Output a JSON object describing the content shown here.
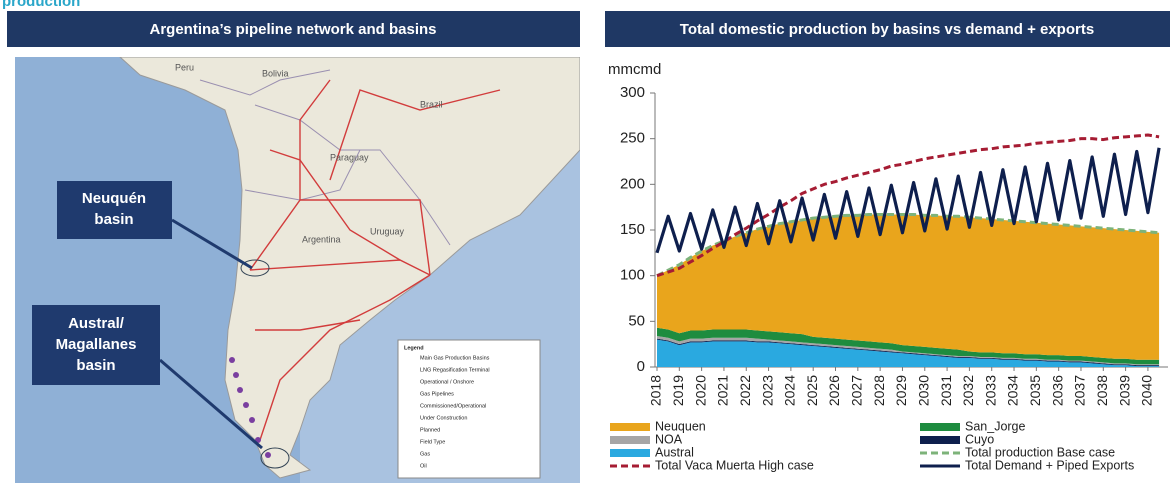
{
  "page": {
    "heading": "production"
  },
  "map_panel": {
    "title": "Argentina’s pipeline network and basins",
    "callouts": [
      [
        "Neuquén",
        "basin"
      ],
      [
        "Austral/",
        "Magallanes",
        "basin"
      ]
    ],
    "countries": [
      "Peru",
      "Bolivia",
      "Brazil",
      "Paraguay",
      "Uruguay",
      "Argentina"
    ],
    "legend": {
      "title": "Legend",
      "items": [
        "Main Gas Production Basins",
        "LNG Regasification Terminal",
        "Operational / Onshore",
        "Gas Pipelines",
        "Commissioned/Operational",
        "Under Construction",
        "Planned",
        "Field Type",
        "Gas",
        "Oil"
      ]
    }
  },
  "chart_data": {
    "type": "stacked_area_line",
    "title": "Total domestic production by basins vs demand + exports",
    "y_label": "mmcmd",
    "xlim": [
      2018,
      2040.9
    ],
    "ylim": [
      0,
      300
    ],
    "yticks": [
      0,
      50,
      100,
      150,
      200,
      250,
      300
    ],
    "xticks": [
      2018,
      2019,
      2020,
      2021,
      2022,
      2023,
      2024,
      2025,
      2026,
      2027,
      2028,
      2029,
      2030,
      2031,
      2032,
      2033,
      2034,
      2035,
      2036,
      2037,
      2038,
      2039,
      2040
    ],
    "x": [
      2018,
      2018.5,
      2019,
      2019.5,
      2020,
      2020.5,
      2021,
      2021.5,
      2022,
      2022.5,
      2023,
      2023.5,
      2024,
      2024.5,
      2025,
      2025.5,
      2026,
      2026.5,
      2027,
      2027.5,
      2028,
      2028.5,
      2029,
      2029.5,
      2030,
      2030.5,
      2031,
      2031.5,
      2032,
      2032.5,
      2033,
      2033.5,
      2034,
      2034.5,
      2035,
      2035.5,
      2036,
      2036.5,
      2037,
      2037.5,
      2038,
      2038.5,
      2039,
      2039.5,
      2040,
      2040.5
    ],
    "series": [
      {
        "name": "Neuquen",
        "kind": "area",
        "color": "#e9a51c",
        "values": [
          57,
          65,
          75,
          80,
          87,
          92,
          97,
          102,
          106,
          111,
          115,
          119,
          122,
          125,
          130,
          132,
          134,
          136,
          137,
          139,
          140,
          141,
          143,
          144,
          144,
          145,
          145,
          146,
          147,
          147,
          146,
          146,
          145,
          145,
          144,
          144,
          143,
          143,
          142,
          142,
          142,
          142,
          141,
          141,
          140,
          139
        ]
      },
      {
        "name": "San_Jorge",
        "kind": "area",
        "color": "#1e8c3f",
        "values": [
          9,
          9,
          9,
          9,
          9,
          9,
          9,
          9,
          9,
          9,
          9,
          9,
          9,
          9,
          7,
          7,
          7,
          7,
          7,
          7,
          7,
          7,
          7,
          7,
          7,
          7,
          7,
          7,
          5,
          5,
          5,
          5,
          5,
          5,
          5,
          5,
          5,
          5,
          5,
          5,
          5,
          5,
          5,
          5,
          5,
          5
        ]
      },
      {
        "name": "NOA",
        "kind": "area",
        "color": "#a6a6a6",
        "values": [
          3,
          3,
          3,
          3,
          3,
          3,
          3,
          3,
          3,
          3,
          2,
          2,
          2,
          2,
          2,
          2,
          2,
          2,
          2,
          2,
          2,
          2,
          1,
          1,
          1,
          1,
          1,
          1,
          1,
          1,
          1,
          1,
          1,
          1,
          1,
          1,
          1,
          1,
          1,
          1,
          1,
          1,
          1,
          1,
          1,
          1
        ]
      },
      {
        "name": "Cuyo",
        "kind": "area",
        "color": "#0e1f4d",
        "values": [
          1,
          1,
          1,
          1,
          1,
          1,
          1,
          1,
          1,
          1,
          1,
          1,
          1,
          1,
          1,
          1,
          1,
          1,
          1,
          1,
          1,
          1,
          1,
          1,
          1,
          1,
          1,
          1,
          1,
          1,
          1,
          1,
          1,
          1,
          1,
          1,
          1,
          1,
          1,
          1,
          1,
          1,
          1,
          1,
          1,
          1
        ]
      },
      {
        "name": "Austral",
        "kind": "area",
        "color": "#2aa9e0",
        "values": [
          30,
          28,
          24,
          27,
          27,
          28,
          28,
          28,
          28,
          27,
          27,
          26,
          25,
          24,
          23,
          22,
          21,
          20,
          19,
          18,
          17,
          16,
          15,
          14,
          13,
          12,
          11,
          10,
          10,
          9,
          9,
          8,
          8,
          7,
          7,
          6,
          6,
          5,
          5,
          4,
          3,
          2,
          2,
          1,
          1,
          1
        ]
      },
      {
        "name": "Total production Base case",
        "kind": "line",
        "dashed": true,
        "color": "#7db37a",
        "values": [
          100,
          106,
          112,
          120,
          127,
          133,
          138,
          143,
          147,
          151,
          154,
          157,
          159,
          161,
          163,
          164,
          165,
          166,
          166,
          167,
          167,
          167,
          167,
          167,
          166,
          166,
          165,
          165,
          164,
          163,
          162,
          161,
          160,
          159,
          158,
          157,
          156,
          155,
          154,
          153,
          152,
          151,
          150,
          149,
          148,
          147
        ]
      },
      {
        "name": "Total Vaca Muerta High case",
        "kind": "line",
        "dashed": true,
        "color": "#a61c33",
        "values": [
          100,
          104,
          108,
          115,
          122,
          130,
          137,
          145,
          152,
          160,
          167,
          175,
          182,
          190,
          195,
          200,
          203,
          207,
          210,
          213,
          216,
          220,
          222,
          225,
          228,
          230,
          232,
          234,
          236,
          238,
          239,
          241,
          242,
          243,
          245,
          246,
          247,
          248,
          250,
          250,
          249,
          251,
          252,
          253,
          254,
          252
        ]
      },
      {
        "name": "Total Demand + Piped Exports",
        "kind": "line",
        "dashed": false,
        "color": "#0e1f4d",
        "values": [
          125,
          165,
          127,
          168,
          129,
          172,
          131,
          175,
          133,
          179,
          135,
          182,
          137,
          185,
          139,
          189,
          141,
          192,
          143,
          196,
          145,
          199,
          147,
          202,
          149,
          206,
          151,
          209,
          153,
          213,
          155,
          216,
          157,
          219,
          159,
          223,
          161,
          226,
          163,
          230,
          165,
          233,
          167,
          236,
          169,
          240
        ]
      }
    ]
  }
}
